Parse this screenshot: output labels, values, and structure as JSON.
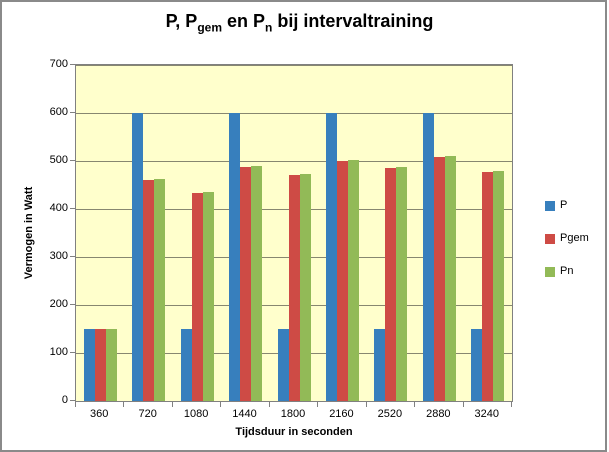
{
  "chart_data": {
    "type": "bar",
    "title_plain": "P, Pgem en Pn bij intervaltraining",
    "title_segments": [
      {
        "text": "P, P",
        "sub": false
      },
      {
        "text": "gem",
        "sub": true
      },
      {
        "text": " en P",
        "sub": false
      },
      {
        "text": "n",
        "sub": true
      },
      {
        "text": " bij intervaltraining",
        "sub": false
      }
    ],
    "xlabel": "Tijdsduur in seconden",
    "ylabel": "Vermogen in Watt",
    "categories": [
      "360",
      "720",
      "1080",
      "1440",
      "1800",
      "2160",
      "2520",
      "2880",
      "3240"
    ],
    "series": [
      {
        "name": "P",
        "color": "#377FBD",
        "values": [
          150,
          600,
          150,
          600,
          150,
          600,
          150,
          600,
          150
        ]
      },
      {
        "name": "Pgem",
        "color": "#CE4B45",
        "values": [
          150,
          460,
          433,
          488,
          470,
          500,
          485,
          508,
          477
        ]
      },
      {
        "name": "Pn",
        "color": "#92BA57",
        "values": [
          150,
          462,
          435,
          490,
          472,
          502,
          487,
          510,
          479
        ]
      }
    ],
    "ylim": [
      0,
      700
    ],
    "ytick_step": 100,
    "yticks": [
      0,
      100,
      200,
      300,
      400,
      500,
      600,
      700
    ],
    "grid": true,
    "gridline_color": "#878770",
    "plot_bg": "#FFFFCC",
    "legend_position": "right",
    "colors": {
      "axis": "#808080",
      "frame": "#8a8a8a",
      "background": "#ffffff",
      "text": "#000000"
    }
  }
}
